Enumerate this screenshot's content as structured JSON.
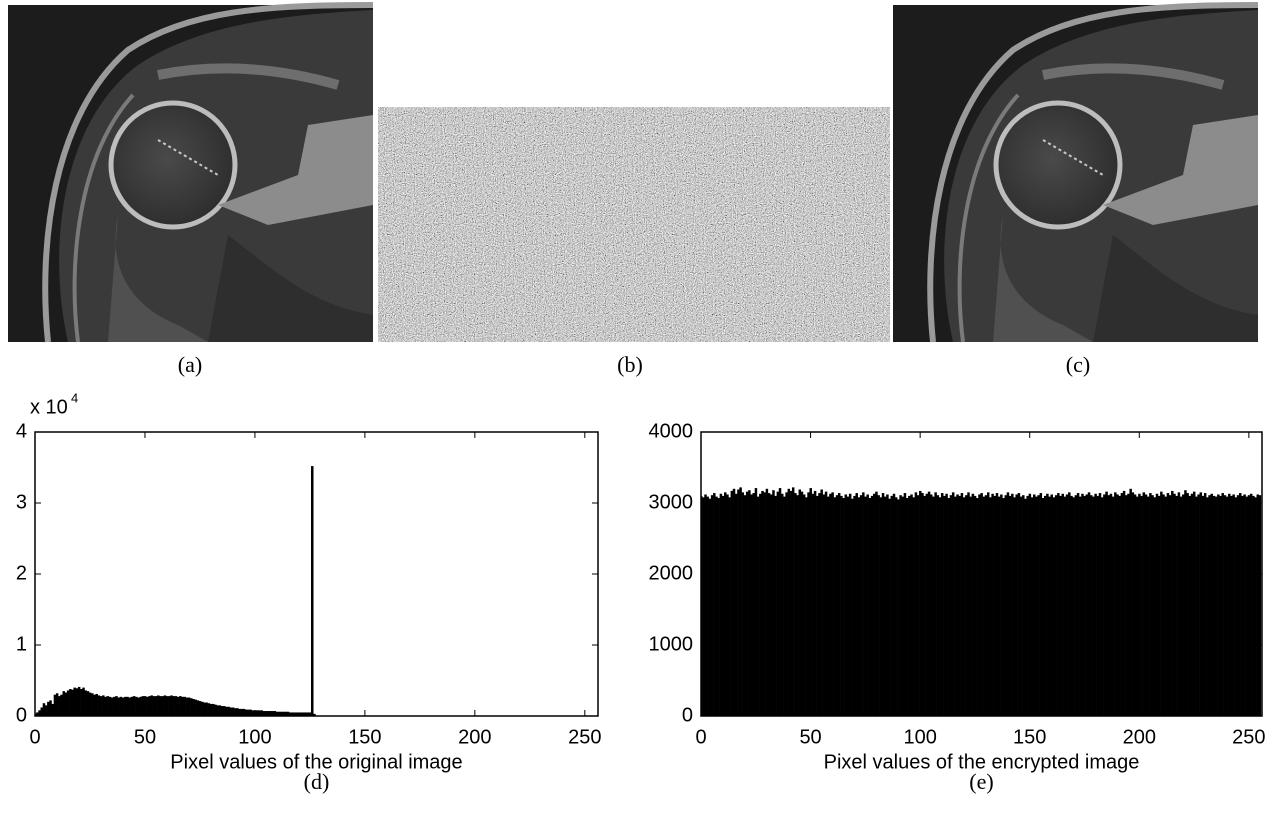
{
  "panel_labels": [
    "(a)",
    "(b)",
    "(c)"
  ],
  "chart_data": [
    {
      "type": "histogram",
      "panel_label": "(d)",
      "x_label": "Pixel values of the original image",
      "y_multiplier": "x 10",
      "y_multiplier_exponent": "4",
      "color": "#000000",
      "xlim": [
        0,
        256
      ],
      "xticks": [
        0,
        50,
        100,
        150,
        200,
        250
      ],
      "ylim": [
        0,
        4
      ],
      "yticks": [
        0,
        1,
        2,
        3,
        4
      ],
      "x": [
        0,
        1,
        2,
        3,
        4,
        5,
        6,
        7,
        8,
        9,
        10,
        11,
        12,
        13,
        14,
        15,
        16,
        17,
        18,
        19,
        20,
        21,
        22,
        23,
        24,
        25,
        26,
        27,
        28,
        29,
        30,
        31,
        32,
        33,
        34,
        35,
        36,
        37,
        38,
        39,
        40,
        41,
        42,
        43,
        44,
        45,
        46,
        47,
        48,
        49,
        50,
        51,
        52,
        53,
        54,
        55,
        56,
        57,
        58,
        59,
        60,
        61,
        62,
        63,
        64,
        65,
        66,
        67,
        68,
        69,
        70,
        71,
        72,
        73,
        74,
        75,
        76,
        77,
        78,
        79,
        80,
        81,
        82,
        83,
        84,
        85,
        86,
        87,
        88,
        89,
        90,
        91,
        92,
        93,
        94,
        95,
        96,
        97,
        98,
        99,
        100,
        101,
        102,
        103,
        104,
        105,
        106,
        107,
        108,
        109,
        110,
        111,
        112,
        113,
        114,
        115,
        116,
        117,
        118,
        119,
        120,
        121,
        122,
        123,
        124,
        125,
        126,
        127,
        128,
        129,
        130,
        131,
        132,
        133,
        134,
        135,
        136,
        137,
        138,
        139,
        140,
        141,
        142,
        143,
        144,
        145,
        146,
        147,
        148,
        149,
        150,
        151,
        152,
        153,
        154,
        155,
        156,
        157,
        158,
        159,
        160,
        161,
        162,
        163,
        164,
        165,
        166,
        167,
        168,
        169,
        170,
        171,
        172,
        173,
        174,
        175,
        176,
        177,
        178,
        179,
        180,
        181,
        182,
        183,
        184,
        185,
        186,
        187,
        188,
        189,
        190,
        191,
        192,
        193,
        194,
        195,
        196,
        197,
        198,
        199,
        200,
        201,
        202,
        203,
        204,
        205,
        206,
        207,
        208,
        209,
        210,
        211,
        212,
        213,
        214,
        215,
        216,
        217,
        218,
        219,
        220,
        221,
        222,
        223,
        224,
        225,
        226,
        227,
        228,
        229,
        230,
        231,
        232,
        233,
        234,
        235,
        236,
        237,
        238,
        239,
        240,
        241,
        242,
        243,
        244,
        245,
        246,
        247,
        248,
        249,
        250,
        251,
        252,
        253,
        254,
        255
      ],
      "values": [
        0.03,
        0.05,
        0.08,
        0.12,
        0.18,
        0.15,
        0.2,
        0.22,
        0.17,
        0.3,
        0.32,
        0.28,
        0.3,
        0.35,
        0.33,
        0.36,
        0.38,
        0.37,
        0.4,
        0.39,
        0.41,
        0.38,
        0.4,
        0.36,
        0.35,
        0.33,
        0.32,
        0.3,
        0.31,
        0.29,
        0.28,
        0.29,
        0.27,
        0.28,
        0.27,
        0.26,
        0.27,
        0.28,
        0.26,
        0.27,
        0.26,
        0.27,
        0.27,
        0.26,
        0.27,
        0.28,
        0.27,
        0.26,
        0.27,
        0.28,
        0.28,
        0.27,
        0.28,
        0.29,
        0.28,
        0.28,
        0.29,
        0.28,
        0.28,
        0.29,
        0.28,
        0.28,
        0.29,
        0.28,
        0.28,
        0.27,
        0.28,
        0.27,
        0.27,
        0.26,
        0.26,
        0.25,
        0.24,
        0.23,
        0.22,
        0.21,
        0.2,
        0.19,
        0.19,
        0.18,
        0.17,
        0.17,
        0.16,
        0.15,
        0.15,
        0.14,
        0.14,
        0.13,
        0.13,
        0.12,
        0.12,
        0.11,
        0.11,
        0.1,
        0.1,
        0.1,
        0.09,
        0.09,
        0.09,
        0.08,
        0.08,
        0.08,
        0.08,
        0.08,
        0.07,
        0.07,
        0.07,
        0.07,
        0.07,
        0.07,
        0.06,
        0.06,
        0.06,
        0.06,
        0.06,
        0.06,
        0.05,
        0.05,
        0.05,
        0.05,
        0.05,
        0.05,
        0.05,
        0.05,
        0.05,
        0.05,
        3.52,
        0.03,
        0,
        0,
        0,
        0,
        0,
        0,
        0,
        0,
        0,
        0,
        0,
        0,
        0,
        0,
        0,
        0,
        0,
        0,
        0,
        0,
        0,
        0,
        0,
        0,
        0,
        0,
        0,
        0,
        0,
        0,
        0,
        0,
        0,
        0,
        0,
        0,
        0,
        0,
        0,
        0,
        0,
        0,
        0,
        0,
        0,
        0,
        0,
        0,
        0,
        0,
        0,
        0,
        0,
        0,
        0,
        0,
        0,
        0,
        0,
        0,
        0,
        0,
        0,
        0,
        0,
        0,
        0,
        0,
        0,
        0,
        0,
        0,
        0,
        0,
        0,
        0,
        0,
        0,
        0,
        0,
        0,
        0,
        0,
        0,
        0,
        0,
        0,
        0,
        0,
        0,
        0,
        0,
        0,
        0,
        0,
        0,
        0,
        0,
        0,
        0,
        0,
        0,
        0,
        0,
        0,
        0,
        0,
        0,
        0,
        0,
        0,
        0,
        0,
        0,
        0,
        0,
        0,
        0,
        0,
        0,
        0,
        0,
        0,
        0,
        0,
        0,
        0,
        0
      ]
    },
    {
      "type": "histogram",
      "panel_label": "(e)",
      "x_label": "Pixel values of the encrypted image",
      "color": "#000000",
      "xlim": [
        0,
        256
      ],
      "xticks": [
        0,
        50,
        100,
        150,
        200,
        250
      ],
      "ylim": [
        0,
        4000
      ],
      "yticks": [
        0,
        1000,
        2000,
        3000,
        4000
      ],
      "x": [
        0,
        1,
        2,
        3,
        4,
        5,
        6,
        7,
        8,
        9,
        10,
        11,
        12,
        13,
        14,
        15,
        16,
        17,
        18,
        19,
        20,
        21,
        22,
        23,
        24,
        25,
        26,
        27,
        28,
        29,
        30,
        31,
        32,
        33,
        34,
        35,
        36,
        37,
        38,
        39,
        40,
        41,
        42,
        43,
        44,
        45,
        46,
        47,
        48,
        49,
        50,
        51,
        52,
        53,
        54,
        55,
        56,
        57,
        58,
        59,
        60,
        61,
        62,
        63,
        64,
        65,
        66,
        67,
        68,
        69,
        70,
        71,
        72,
        73,
        74,
        75,
        76,
        77,
        78,
        79,
        80,
        81,
        82,
        83,
        84,
        85,
        86,
        87,
        88,
        89,
        90,
        91,
        92,
        93,
        94,
        95,
        96,
        97,
        98,
        99,
        100,
        101,
        102,
        103,
        104,
        105,
        106,
        107,
        108,
        109,
        110,
        111,
        112,
        113,
        114,
        115,
        116,
        117,
        118,
        119,
        120,
        121,
        122,
        123,
        124,
        125,
        126,
        127,
        128,
        129,
        130,
        131,
        132,
        133,
        134,
        135,
        136,
        137,
        138,
        139,
        140,
        141,
        142,
        143,
        144,
        145,
        146,
        147,
        148,
        149,
        150,
        151,
        152,
        153,
        154,
        155,
        156,
        157,
        158,
        159,
        160,
        161,
        162,
        163,
        164,
        165,
        166,
        167,
        168,
        169,
        170,
        171,
        172,
        173,
        174,
        175,
        176,
        177,
        178,
        179,
        180,
        181,
        182,
        183,
        184,
        185,
        186,
        187,
        188,
        189,
        190,
        191,
        192,
        193,
        194,
        195,
        196,
        197,
        198,
        199,
        200,
        201,
        202,
        203,
        204,
        205,
        206,
        207,
        208,
        209,
        210,
        211,
        212,
        213,
        214,
        215,
        216,
        217,
        218,
        219,
        220,
        221,
        222,
        223,
        224,
        225,
        226,
        227,
        228,
        229,
        230,
        231,
        232,
        233,
        234,
        235,
        236,
        237,
        238,
        239,
        240,
        241,
        242,
        243,
        244,
        245,
        246,
        247,
        248,
        249,
        250,
        251,
        252,
        253,
        254,
        255
      ],
      "values": [
        3100,
        3080,
        3120,
        3090,
        3060,
        3110,
        3140,
        3090,
        3070,
        3130,
        3100,
        3150,
        3120,
        3080,
        3170,
        3200,
        3130,
        3190,
        3220,
        3150,
        3110,
        3160,
        3180,
        3120,
        3140,
        3210,
        3090,
        3130,
        3170,
        3150,
        3200,
        3140,
        3120,
        3180,
        3100,
        3160,
        3210,
        3130,
        3090,
        3150,
        3200,
        3170,
        3220,
        3140,
        3110,
        3190,
        3160,
        3120,
        3080,
        3150,
        3210,
        3130,
        3170,
        3100,
        3140,
        3190,
        3120,
        3160,
        3090,
        3130,
        3150,
        3080,
        3110,
        3140,
        3100,
        3070,
        3120,
        3090,
        3130,
        3060,
        3100,
        3140,
        3080,
        3110,
        3150,
        3090,
        3120,
        3070,
        3100,
        3130,
        3160,
        3110,
        3080,
        3140,
        3090,
        3120,
        3060,
        3100,
        3130,
        3080,
        3050,
        3110,
        3090,
        3140,
        3070,
        3100,
        3120,
        3080,
        3150,
        3110,
        3170,
        3140,
        3100,
        3130,
        3160,
        3120,
        3090,
        3150,
        3110,
        3080,
        3140,
        3100,
        3130,
        3070,
        3110,
        3150,
        3090,
        3120,
        3100,
        3140,
        3080,
        3110,
        3150,
        3090,
        3130,
        3100,
        3070,
        3120,
        3140,
        3090,
        3110,
        3150,
        3080,
        3130,
        3100,
        3140,
        3090,
        3120,
        3070,
        3110,
        3150,
        3100,
        3130,
        3080,
        3120,
        3140,
        3090,
        3110,
        3060,
        3100,
        3130,
        3080,
        3120,
        3090,
        3110,
        3140,
        3070,
        3100,
        3130,
        3090,
        3120,
        3080,
        3110,
        3140,
        3100,
        3130,
        3090,
        3120,
        3150,
        3100,
        3080,
        3110,
        3140,
        3090,
        3130,
        3100,
        3120,
        3150,
        3110,
        3090,
        3130,
        3100,
        3140,
        3080,
        3120,
        3160,
        3110,
        3130,
        3090,
        3150,
        3120,
        3100,
        3140,
        3170,
        3110,
        3130,
        3200,
        3150,
        3120,
        3090,
        3130,
        3100,
        3150,
        3120,
        3090,
        3140,
        3110,
        3080,
        3130,
        3100,
        3160,
        3120,
        3090,
        3140,
        3110,
        3170,
        3130,
        3100,
        3150,
        3090,
        3120,
        3180,
        3140,
        3100,
        3130,
        3160,
        3090,
        3120,
        3150,
        3100,
        3140,
        3080,
        3110,
        3130,
        3100,
        3090,
        3120,
        3100,
        3140,
        3110,
        3090,
        3130,
        3100,
        3120,
        3080,
        3110,
        3140,
        3100,
        3120,
        3090,
        3110,
        3130,
        3100,
        3080,
        3120,
        3110
      ]
    }
  ]
}
